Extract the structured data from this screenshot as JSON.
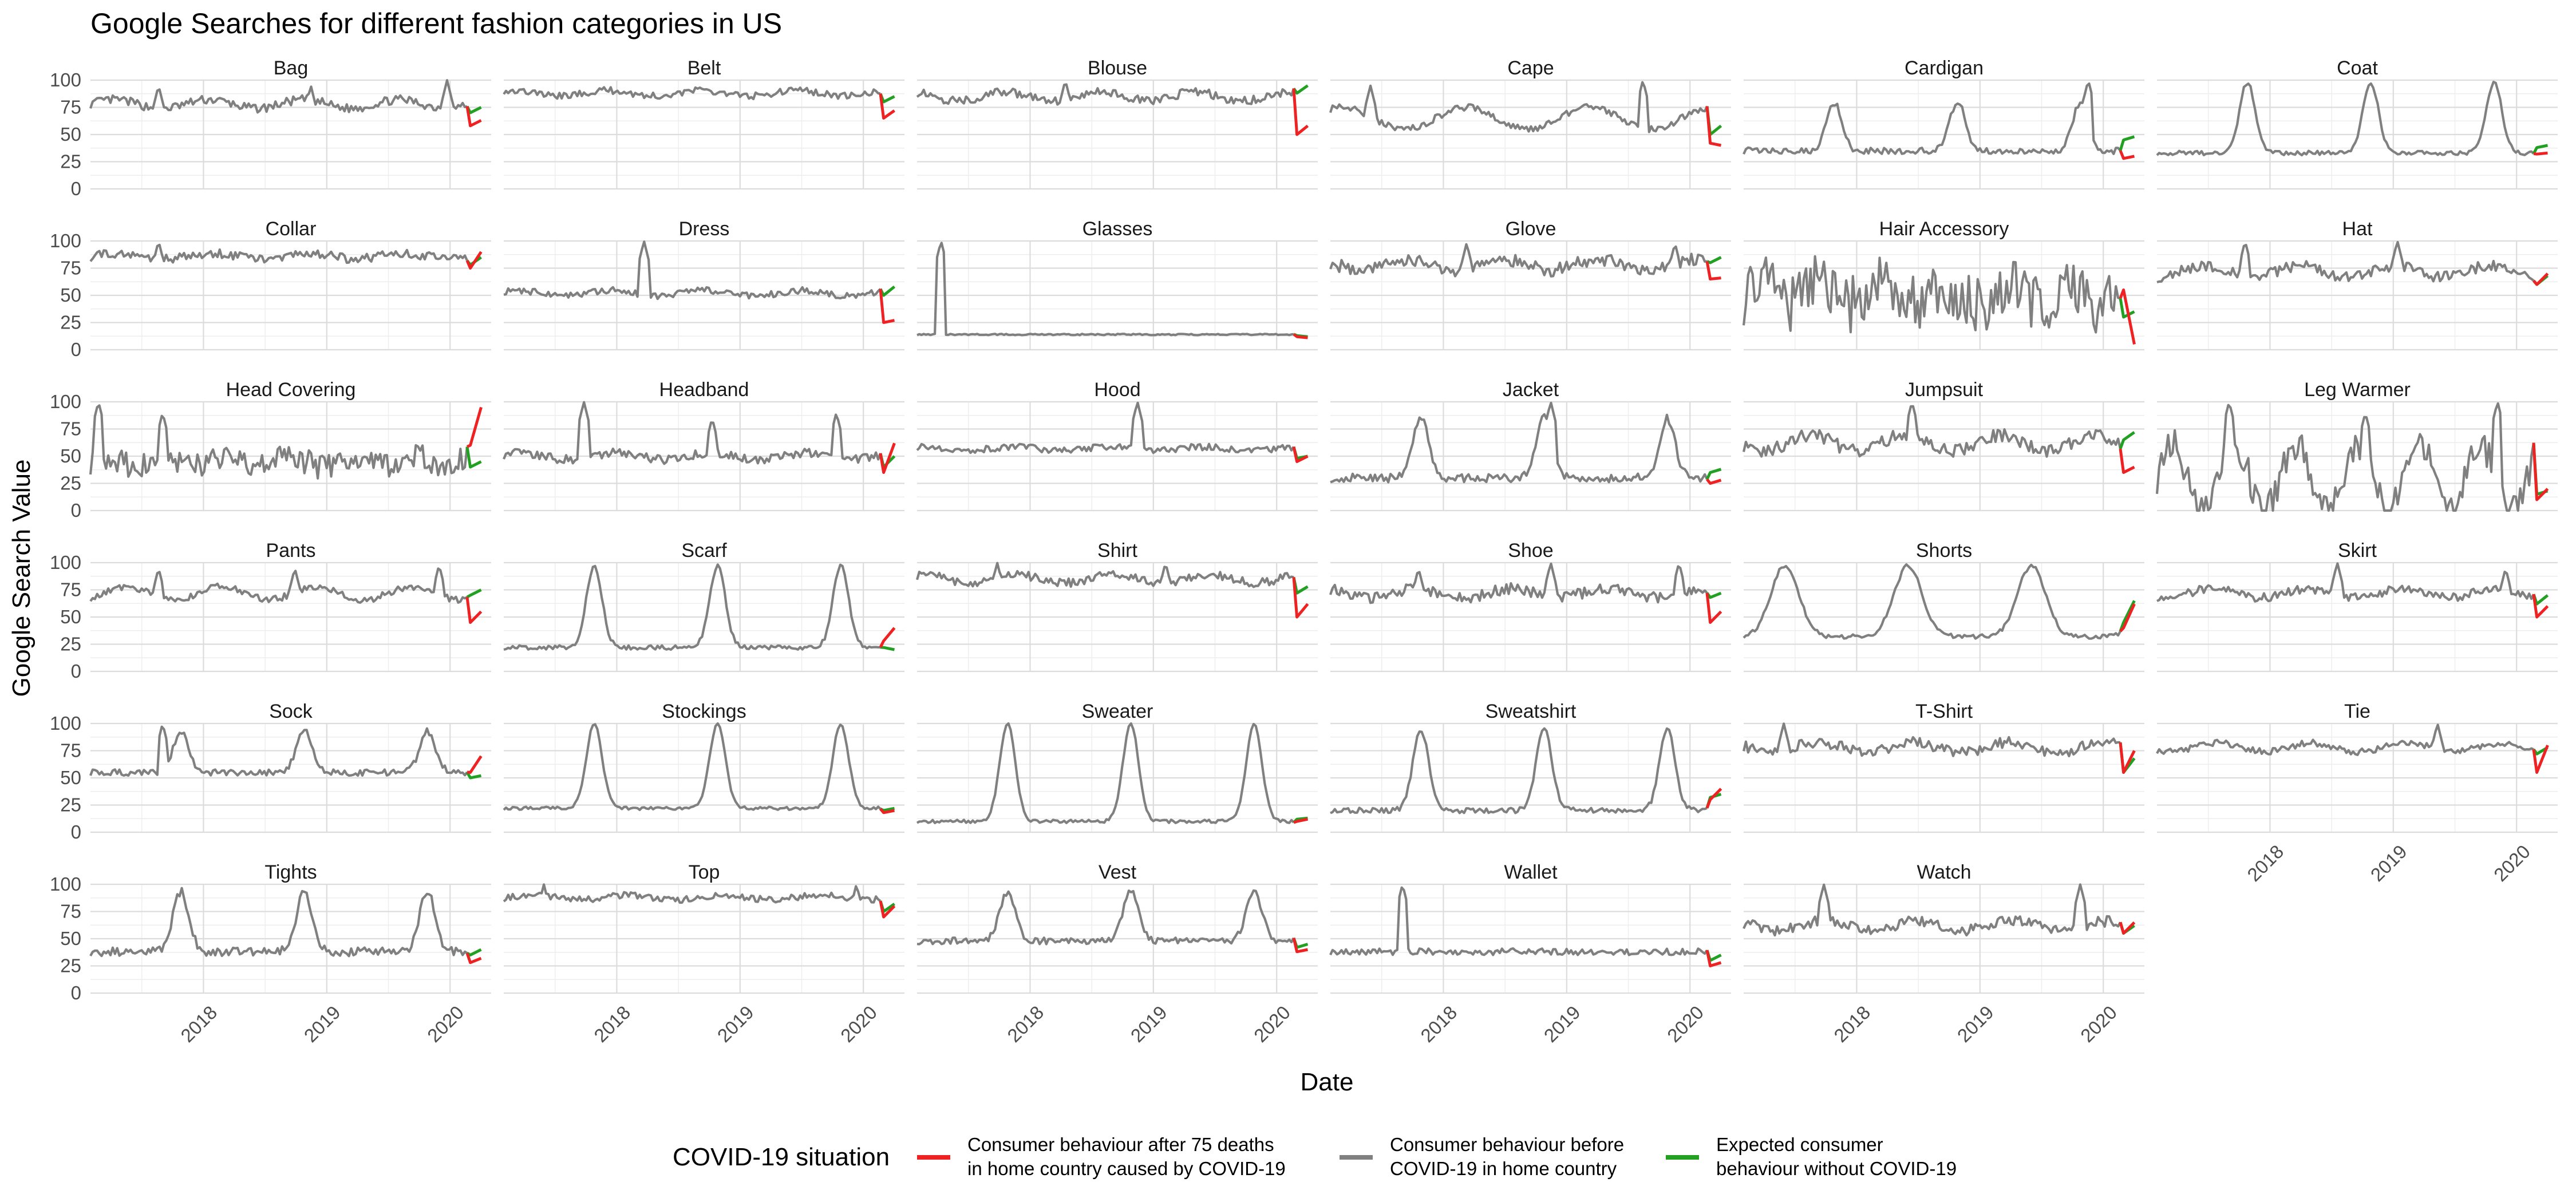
{
  "chart_data": {
    "type": "line",
    "title": "Google Searches for different fashion categories in US",
    "xlabel": "Date",
    "ylabel": "Google Search Value",
    "ylim": [
      0,
      100
    ],
    "y_ticks": [
      0,
      25,
      50,
      75,
      100
    ],
    "x_ticks": [
      "2018",
      "2019",
      "2020"
    ],
    "x_range": [
      "2017-02",
      "2020-05"
    ],
    "facet_layout": {
      "columns": 6,
      "rows": 6
    },
    "grid": true,
    "legend": {
      "title": "COVID-19 situation",
      "position": "bottom",
      "entries": [
        {
          "line1": "Consumer behaviour after 75 deaths",
          "line2": "in home country caused by COVID-19",
          "color": "#ee2222"
        },
        {
          "line1": "Consumer behaviour before",
          "line2": "COVID-19 in home country",
          "color": "#808080"
        },
        {
          "line1": "Expected consumer",
          "line2": "behaviour without COVID-19",
          "color": "#22a022"
        }
      ]
    },
    "panels": [
      {
        "name": "Bag",
        "pattern": "flat",
        "base": 78,
        "amp": 8,
        "noise": 4,
        "spikes": [
          [
            0.17,
            95
          ],
          [
            0.55,
            95
          ],
          [
            0.89,
            100
          ]
        ],
        "after": [
          58,
          63
        ],
        "expected": [
          70,
          75
        ]
      },
      {
        "name": "Belt",
        "pattern": "flat",
        "base": 88,
        "amp": 5,
        "noise": 3,
        "spikes": [],
        "after": [
          65,
          72
        ],
        "expected": [
          80,
          85
        ]
      },
      {
        "name": "Blouse",
        "pattern": "flat",
        "base": 85,
        "amp": 8,
        "noise": 4,
        "spikes": [
          [
            0.37,
            100
          ]
        ],
        "after": [
          50,
          58
        ],
        "expected": [
          88,
          95
        ]
      },
      {
        "name": "Cape",
        "pattern": "wave",
        "base": 65,
        "amp": 20,
        "noise": 3,
        "spikes": [
          [
            0.1,
            95
          ],
          [
            0.78,
            100
          ]
        ],
        "after": [
          42,
          40
        ],
        "expected": [
          50,
          58
        ]
      },
      {
        "name": "Cardigan",
        "pattern": "seasonal",
        "base": 35,
        "amp": 45,
        "noise": 3,
        "spikes": [
          [
            0.86,
            100
          ]
        ],
        "after": [
          28,
          30
        ],
        "expected": [
          45,
          48
        ]
      },
      {
        "name": "Coat",
        "pattern": "seasonal",
        "base": 33,
        "amp": 65,
        "noise": 2,
        "spikes": [],
        "after": [
          32,
          33
        ],
        "expected": [
          38,
          40
        ]
      },
      {
        "name": "Collar",
        "pattern": "flat",
        "base": 86,
        "amp": 5,
        "noise": 4,
        "spikes": [
          [
            0.17,
            100
          ]
        ],
        "after": [
          75,
          90
        ],
        "expected": [
          78,
          85
        ]
      },
      {
        "name": "Dress",
        "pattern": "flat",
        "base": 52,
        "amp": 5,
        "noise": 3,
        "spikes": [
          [
            0.35,
            100
          ]
        ],
        "after": [
          25,
          27
        ],
        "expected": [
          50,
          58
        ]
      },
      {
        "name": "Glasses",
        "pattern": "glasses",
        "base": 14,
        "amp": 1,
        "noise": 0.6,
        "spikes": [
          [
            0.06,
            100
          ]
        ],
        "after": [
          12,
          11
        ],
        "expected": [
          13,
          12
        ]
      },
      {
        "name": "Glove",
        "pattern": "flat",
        "base": 78,
        "amp": 10,
        "noise": 6,
        "spikes": [
          [
            0.34,
            98
          ],
          [
            0.86,
            98
          ]
        ],
        "after": [
          65,
          66
        ],
        "expected": [
          80,
          85
        ]
      },
      {
        "name": "Hair Accessory",
        "pattern": "noisy",
        "base": 50,
        "amp": 10,
        "noise": 28,
        "spikes": [],
        "after": [
          55,
          5
        ],
        "expected": [
          30,
          35
        ]
      },
      {
        "name": "Hat",
        "pattern": "flat",
        "base": 72,
        "amp": 10,
        "noise": 5,
        "spikes": [
          [
            0.22,
            100
          ],
          [
            0.6,
            100
          ]
        ],
        "after": [
          60,
          70
        ],
        "expected": [
          60,
          68
        ]
      },
      {
        "name": "Head Covering",
        "pattern": "noisy",
        "base": 45,
        "amp": 5,
        "noise": 12,
        "spikes": [
          [
            0.02,
            100
          ],
          [
            0.18,
            90
          ]
        ],
        "after": [
          60,
          95
        ],
        "expected": [
          40,
          45
        ]
      },
      {
        "name": "Headband",
        "pattern": "flat",
        "base": 50,
        "amp": 6,
        "noise": 4,
        "spikes": [
          [
            0.2,
            100
          ],
          [
            0.52,
            85
          ],
          [
            0.83,
            90
          ]
        ],
        "after": [
          35,
          62
        ],
        "expected": [
          40,
          50
        ]
      },
      {
        "name": "Hood",
        "pattern": "flat",
        "base": 57,
        "amp": 3,
        "noise": 3,
        "spikes": [
          [
            0.55,
            100
          ]
        ],
        "after": [
          45,
          50
        ],
        "expected": [
          48,
          50
        ]
      },
      {
        "name": "Jacket",
        "pattern": "seasonal",
        "base": 30,
        "amp": 55,
        "noise": 4,
        "spikes": [
          [
            0.55,
            100
          ]
        ],
        "after": [
          25,
          28
        ],
        "expected": [
          35,
          38
        ]
      },
      {
        "name": "Jumpsuit",
        "pattern": "flat",
        "base": 62,
        "amp": 15,
        "noise": 6,
        "spikes": [
          [
            0.42,
            100
          ]
        ],
        "after": [
          35,
          40
        ],
        "expected": [
          65,
          72
        ]
      },
      {
        "name": "Leg Warmer",
        "pattern": "noisy",
        "base": 30,
        "amp": 30,
        "noise": 15,
        "spikes": [
          [
            0.18,
            100
          ],
          [
            0.52,
            90
          ],
          [
            0.85,
            100
          ]
        ],
        "after": [
          10,
          20
        ],
        "expected": [
          15,
          18
        ]
      },
      {
        "name": "Pants",
        "pattern": "flat",
        "base": 72,
        "amp": 12,
        "noise": 3,
        "spikes": [
          [
            0.17,
            95
          ],
          [
            0.51,
            95
          ],
          [
            0.87,
            98
          ]
        ],
        "after": [
          45,
          55
        ],
        "expected": [
          70,
          75
        ]
      },
      {
        "name": "Scarf",
        "pattern": "seasonal",
        "base": 22,
        "amp": 75,
        "noise": 2,
        "spikes": [],
        "after": [
          28,
          40
        ],
        "expected": [
          22,
          20
        ]
      },
      {
        "name": "Shirt",
        "pattern": "flat",
        "base": 85,
        "amp": 7,
        "noise": 4,
        "spikes": [
          [
            0.2,
            100
          ],
          [
            0.62,
            100
          ]
        ],
        "after": [
          50,
          62
        ],
        "expected": [
          72,
          78
        ]
      },
      {
        "name": "Shoe",
        "pattern": "flat",
        "base": 72,
        "amp": 8,
        "noise": 5,
        "spikes": [
          [
            0.22,
            95
          ],
          [
            0.55,
            100
          ],
          [
            0.87,
            100
          ]
        ],
        "after": [
          45,
          55
        ],
        "expected": [
          68,
          72
        ]
      },
      {
        "name": "Shorts",
        "pattern": "summer",
        "base": 32,
        "amp": 65,
        "noise": 2,
        "spikes": [],
        "after": [
          40,
          62
        ],
        "expected": [
          45,
          65
        ]
      },
      {
        "name": "Skirt",
        "pattern": "flat",
        "base": 72,
        "amp": 8,
        "noise": 4,
        "spikes": [
          [
            0.45,
            100
          ],
          [
            0.87,
            95
          ]
        ],
        "after": [
          50,
          60
        ],
        "expected": [
          62,
          70
        ]
      },
      {
        "name": "Sock",
        "pattern": "seasonal",
        "base": 55,
        "amp": 38,
        "noise": 3,
        "spikes": [
          [
            0.18,
            100
          ]
        ],
        "after": [
          55,
          70
        ],
        "expected": [
          50,
          52
        ]
      },
      {
        "name": "Stockings",
        "pattern": "seasonal",
        "base": 22,
        "amp": 78,
        "noise": 1.5,
        "spikes": [],
        "after": [
          18,
          20
        ],
        "expected": [
          20,
          22
        ]
      },
      {
        "name": "Sweater",
        "pattern": "seasonal",
        "base": 10,
        "amp": 90,
        "noise": 1.5,
        "spikes": [],
        "after": [
          10,
          12
        ],
        "expected": [
          12,
          13
        ]
      },
      {
        "name": "Sweatshirt",
        "pattern": "seasonal",
        "base": 20,
        "amp": 75,
        "noise": 2.5,
        "spikes": [],
        "after": [
          30,
          40
        ],
        "expected": [
          32,
          35
        ]
      },
      {
        "name": "T-Shirt",
        "pattern": "flat",
        "base": 78,
        "amp": 10,
        "noise": 5,
        "spikes": [
          [
            0.1,
            100
          ]
        ],
        "after": [
          55,
          75
        ],
        "expected": [
          55,
          68
        ]
      },
      {
        "name": "Tie",
        "pattern": "flat",
        "base": 78,
        "amp": 8,
        "noise": 3,
        "spikes": [
          [
            0.7,
            100
          ]
        ],
        "after": [
          55,
          80
        ],
        "expected": [
          72,
          78
        ]
      },
      {
        "name": "Tights",
        "pattern": "seasonal",
        "base": 38,
        "amp": 55,
        "noise": 4,
        "spikes": [],
        "after": [
          28,
          32
        ],
        "expected": [
          35,
          40
        ]
      },
      {
        "name": "Top",
        "pattern": "flat",
        "base": 88,
        "amp": 4,
        "noise": 3,
        "spikes": [
          [
            0.1,
            100
          ],
          [
            0.88,
            100
          ]
        ],
        "after": [
          70,
          80
        ],
        "expected": [
          75,
          82
        ]
      },
      {
        "name": "Vest",
        "pattern": "seasonal",
        "base": 48,
        "amp": 45,
        "noise": 3,
        "spikes": [],
        "after": [
          38,
          40
        ],
        "expected": [
          42,
          45
        ]
      },
      {
        "name": "Wallet",
        "pattern": "wallet",
        "base": 38,
        "amp": 5,
        "noise": 3,
        "spikes": [
          [
            0.18,
            100
          ]
        ],
        "after": [
          25,
          28
        ],
        "expected": [
          30,
          35
        ]
      },
      {
        "name": "Watch",
        "pattern": "flat",
        "base": 62,
        "amp": 8,
        "noise": 5,
        "spikes": [
          [
            0.2,
            100
          ],
          [
            0.84,
            100
          ]
        ],
        "after": [
          55,
          65
        ],
        "expected": [
          55,
          62
        ]
      }
    ]
  }
}
